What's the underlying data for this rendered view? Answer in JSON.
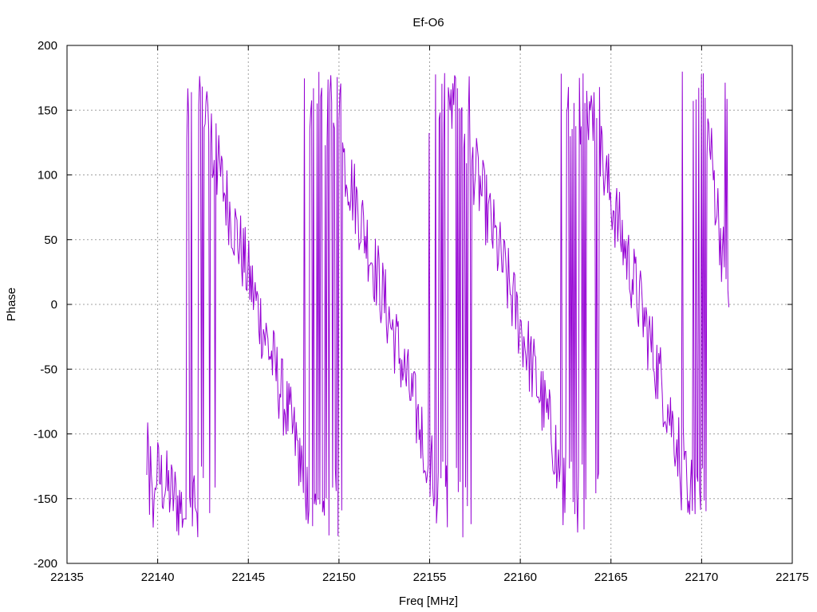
{
  "chart_data": {
    "type": "line",
    "title": "Ef-O6",
    "xlabel": "Freq [MHz]",
    "ylabel": "Phase",
    "xlim": [
      22135,
      22175
    ],
    "ylim": [
      -200,
      200
    ],
    "x_ticks": [
      22135,
      22140,
      22145,
      22150,
      22155,
      22160,
      22165,
      22170,
      22175
    ],
    "y_ticks": [
      -200,
      -150,
      -100,
      -50,
      0,
      50,
      100,
      150,
      200
    ],
    "grid": true,
    "series_color": "#9400d3",
    "series": [
      {
        "x_start": 22139.4,
        "x_end": 22171.5,
        "points": 640,
        "segments": [
          {
            "x0": 22139.4,
            "x1": 22142.0,
            "y0": -120,
            "y1": -170
          },
          {
            "x0": 22142.0,
            "x1": 22149.0,
            "y0": 170,
            "y1": -175
          },
          {
            "x0": 22149.0,
            "x1": 22156.0,
            "y0": 175,
            "y1": -170
          },
          {
            "x0": 22156.0,
            "x1": 22163.3,
            "y0": 175,
            "y1": -175
          },
          {
            "x0": 22163.3,
            "x1": 22170.0,
            "y0": 170,
            "y1": -175
          },
          {
            "x0": 22170.0,
            "x1": 22171.5,
            "y0": 175,
            "y1": 0
          }
        ]
      }
    ]
  },
  "style": {
    "axis_color": "#000000",
    "grid_color": "#a0a0a0"
  }
}
